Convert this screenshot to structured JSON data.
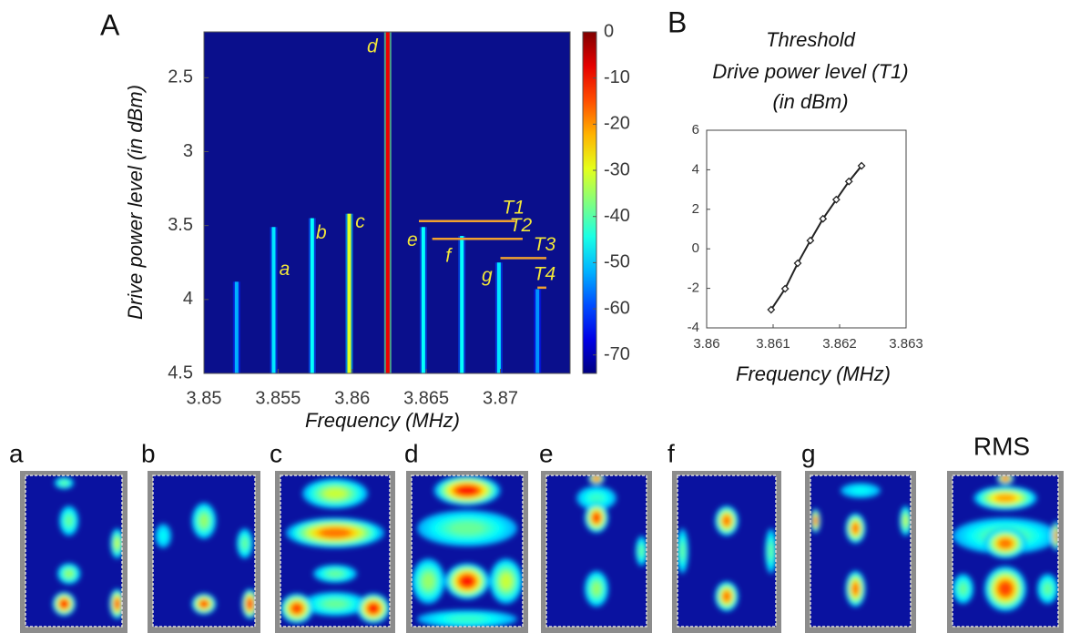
{
  "chart_data": [
    {
      "type": "heatmap",
      "panel": "A",
      "xlabel": "Frequency (MHz)",
      "ylabel": "Drive power level (in dBm)",
      "xlim": [
        3.85,
        3.8747
      ],
      "ylim": [
        2.19,
        4.5
      ],
      "y_inverted": true,
      "xticks": [
        3.85,
        3.855,
        3.86,
        3.865,
        3.87
      ],
      "yticks": [
        2.5,
        3,
        3.5,
        4,
        4.5
      ],
      "clim": [
        -74,
        0
      ],
      "cticks": [
        0,
        -10,
        -20,
        -30,
        -40,
        -50,
        -60,
        -70
      ],
      "colormap": "jet",
      "background_color": "#0a0f8c",
      "label_color": "#f2e63a",
      "peaks": [
        {
          "label": null,
          "x": 3.8522,
          "y": 3.88,
          "value": -52
        },
        {
          "label": "a",
          "x": 3.8547,
          "y": 3.51,
          "value": -48
        },
        {
          "label": "b",
          "x": 3.8573,
          "y": 3.45,
          "value": -46
        },
        {
          "label": "c",
          "x": 3.8598,
          "y": 3.42,
          "value": -30
        },
        {
          "label": "d",
          "x": 3.8624,
          "y": 2.19,
          "value": -8
        },
        {
          "label": "e",
          "x": 3.8648,
          "y": 3.51,
          "value": -46
        },
        {
          "label": "f",
          "x": 3.8674,
          "y": 3.57,
          "value": -46
        },
        {
          "label": "g",
          "x": 3.8699,
          "y": 3.75,
          "value": -48
        },
        {
          "label": null,
          "x": 3.8725,
          "y": 3.93,
          "value": -54
        }
      ],
      "thresholds": [
        {
          "label": "T1",
          "x": [
            3.8645,
            3.871
          ],
          "y": 3.47,
          "color": "#f0a030"
        },
        {
          "label": "T2",
          "x": [
            3.8654,
            3.8715
          ],
          "y": 3.59,
          "color": "#f0a030"
        },
        {
          "label": "T3",
          "x": [
            3.87,
            3.8731
          ],
          "y": 3.72,
          "color": "#f0a030"
        },
        {
          "label": "T4",
          "x": [
            3.8725,
            3.8731
          ],
          "y": 3.92,
          "color": "#f0a030"
        }
      ]
    },
    {
      "type": "line",
      "panel": "B",
      "title": [
        "Threshold",
        "Drive power level (T1)",
        "(in dBm)"
      ],
      "xlabel": "Frequency (MHz)",
      "x": [
        3.86097,
        3.86118,
        3.86137,
        3.86156,
        3.86175,
        3.86195,
        3.86214,
        3.86233
      ],
      "values": [
        -3.08,
        -2.02,
        -0.73,
        0.42,
        1.52,
        2.49,
        3.41,
        4.2
      ],
      "xlim": [
        3.86,
        3.863
      ],
      "ylim": [
        -4,
        6
      ],
      "xticks": [
        3.86,
        3.861,
        3.862,
        3.863
      ],
      "yticks": [
        -4,
        -2,
        0,
        2,
        4,
        6
      ],
      "color": "#222222",
      "marker": "diamond"
    }
  ],
  "images": [
    {
      "label": "a"
    },
    {
      "label": "b"
    },
    {
      "label": "c"
    },
    {
      "label": "d"
    },
    {
      "label": "e"
    },
    {
      "label": "f"
    },
    {
      "label": "g"
    },
    {
      "label": "RMS"
    }
  ]
}
